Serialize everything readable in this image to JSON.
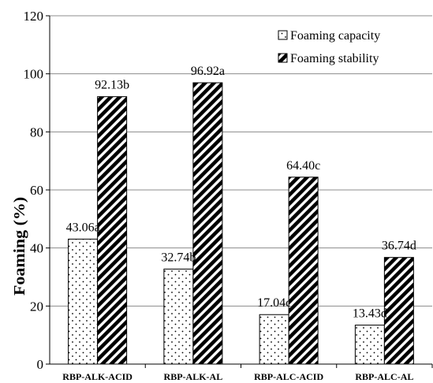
{
  "chart_data": {
    "type": "bar",
    "title": "",
    "xlabel": "",
    "ylabel": "Foaming (%)",
    "ylim": [
      0,
      120
    ],
    "yticks": [
      0,
      20,
      40,
      60,
      80,
      100,
      120
    ],
    "grid": "horizontal",
    "legend_position": "top-right",
    "categories": [
      "RBP-ALK-ACID",
      "RBP-ALK-AL",
      "RBP-ALC-ACID",
      "RBP-ALC-AL"
    ],
    "series": [
      {
        "name": "Foaming capacity",
        "pattern": "dotted",
        "values": [
          43.06,
          32.74,
          17.04,
          13.43
        ],
        "labels": [
          "43.06a",
          "32.74b",
          "17.04c",
          "13.43d"
        ]
      },
      {
        "name": "Foaming stability",
        "pattern": "diagonal-hatch",
        "values": [
          92.13,
          96.92,
          64.4,
          36.74
        ],
        "labels": [
          "92.13b",
          "96.92a",
          "64.40c",
          "36.74d"
        ]
      }
    ]
  }
}
